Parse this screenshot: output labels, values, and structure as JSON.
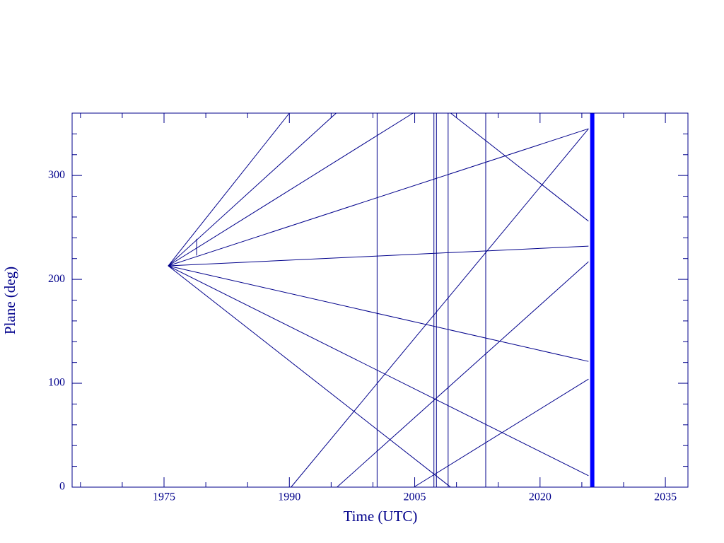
{
  "chart_data": {
    "type": "line",
    "x_label": "Time (UTC)",
    "y_label": "Plane (deg)",
    "xlim": [
      1964,
      2037.7
    ],
    "ylim": [
      0,
      360
    ],
    "xticks": [
      1975,
      1990,
      2005,
      2020,
      2035
    ],
    "xminorticks": [
      1965,
      1970,
      1980,
      1985,
      1995,
      2000,
      2010,
      2015,
      2025,
      2030
    ],
    "yticks": [
      0,
      100,
      200,
      300
    ],
    "yminorticks": [
      20,
      40,
      60,
      80,
      120,
      140,
      160,
      180,
      220,
      240,
      260,
      280,
      320,
      340
    ],
    "grid": false,
    "color": "#00008b",
    "band": {
      "xrange": [
        2026.0,
        2026.5
      ],
      "color": "#0000ff"
    },
    "series": [
      {
        "color": "#00008b",
        "x": [
          1975.5,
          1990.0
        ],
        "values": [
          213,
          360
        ]
      },
      {
        "color": "#00008b",
        "x": [
          1975.5,
          1995.6
        ],
        "values": [
          213,
          360
        ]
      },
      {
        "color": "#00008b",
        "x": [
          1975.5,
          2004.8
        ],
        "values": [
          213,
          360
        ]
      },
      {
        "color": "#00008b",
        "x": [
          1975.5,
          2025.8
        ],
        "values": [
          213,
          345
        ]
      },
      {
        "color": "#00008b",
        "x": [
          1975.5,
          2025.8
        ],
        "values": [
          213,
          232
        ]
      },
      {
        "color": "#00008b",
        "x": [
          1975.5,
          2025.8
        ],
        "values": [
          213,
          121
        ]
      },
      {
        "color": "#00008b",
        "x": [
          1975.5,
          2025.8
        ],
        "values": [
          213,
          11
        ]
      },
      {
        "color": "#00008b",
        "x": [
          1975.5,
          2009.3
        ],
        "values": [
          213,
          0
        ]
      },
      {
        "color": "#00008b",
        "x": [
          1990.2,
          2025.8
        ],
        "values": [
          0,
          345
        ]
      },
      {
        "color": "#00008b",
        "x": [
          1995.7,
          2025.8
        ],
        "values": [
          0,
          217
        ]
      },
      {
        "color": "#00008b",
        "x": [
          2004.9,
          2025.8
        ],
        "values": [
          0,
          104
        ]
      },
      {
        "color": "#00008b",
        "x": [
          2009.3,
          2025.8
        ],
        "values": [
          360,
          256
        ]
      },
      {
        "color": "#00008b",
        "x": [
          2000.5,
          2000.5
        ],
        "values": [
          0,
          360
        ]
      },
      {
        "color": "#00008b",
        "x": [
          2007.3,
          2007.3
        ],
        "values": [
          0,
          360
        ]
      },
      {
        "color": "#00008b",
        "x": [
          2007.6,
          2007.6
        ],
        "values": [
          0,
          360
        ]
      },
      {
        "color": "#00008b",
        "x": [
          2009.0,
          2009.0
        ],
        "values": [
          0,
          360
        ]
      },
      {
        "color": "#00008b",
        "x": [
          2013.5,
          2013.5
        ],
        "values": [
          0,
          360
        ]
      },
      {
        "color": "#00008b",
        "x": [
          1978.9,
          1978.9
        ],
        "values": [
          223,
          239
        ]
      }
    ]
  }
}
